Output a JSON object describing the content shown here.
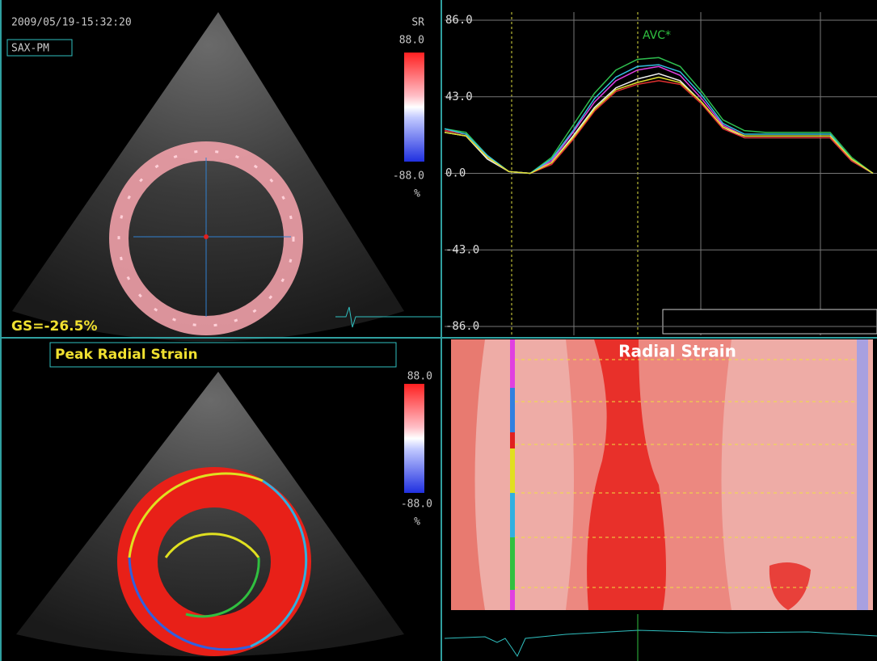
{
  "top_left": {
    "timestamp": "2009/05/19-15:32:20",
    "view": "SAX-PM",
    "mode": "SR",
    "scale_max": "88.0",
    "scale_min": "-88.0",
    "scale_unit": "%",
    "global_strain": "GS=-26.5%"
  },
  "bottom_left": {
    "title": "Peak Radial Strain",
    "scale_max": "88.0",
    "scale_min": "-88.0",
    "scale_unit": "%"
  },
  "strain_plot": {
    "ylim": [
      -86,
      86
    ],
    "xlim": [
      0,
      100
    ],
    "yticks": [
      {
        "value": 86,
        "label": "86.0"
      },
      {
        "value": 43,
        "label": "43.0"
      },
      {
        "value": 0,
        "label": "0.0"
      },
      {
        "value": -43,
        "label": "-43.0"
      },
      {
        "value": -86,
        "label": "-86.0"
      }
    ],
    "annotation": "AVC*",
    "x": [
      0,
      5,
      10,
      15,
      20,
      25,
      30,
      35,
      40,
      45,
      50,
      55,
      60,
      65,
      70,
      75,
      80,
      85,
      90,
      95,
      100
    ],
    "curves": [
      {
        "color": "#2fbf4f",
        "values": [
          25,
          23,
          10,
          1,
          0,
          9,
          27,
          45,
          58,
          64,
          65,
          60,
          46,
          30,
          24,
          23,
          23,
          23,
          23,
          9,
          0
        ]
      },
      {
        "color": "#e040e0",
        "values": [
          24,
          22,
          9,
          1,
          0,
          7,
          23,
          40,
          52,
          58,
          60,
          55,
          42,
          27,
          21,
          21,
          21,
          21,
          21,
          8,
          0
        ]
      },
      {
        "color": "#f0f0f0",
        "values": [
          23,
          21,
          8,
          1,
          0,
          6,
          21,
          37,
          48,
          53,
          56,
          52,
          40,
          26,
          20,
          20,
          20,
          20,
          20,
          7,
          0
        ]
      },
      {
        "color": "#e03030",
        "values": [
          24,
          22,
          9,
          1,
          0,
          5,
          19,
          35,
          46,
          50,
          52,
          50,
          39,
          25,
          20,
          20,
          20,
          20,
          20,
          7,
          0
        ]
      },
      {
        "color": "#30c0e0",
        "values": [
          25,
          22,
          10,
          1,
          0,
          8,
          24,
          42,
          54,
          60,
          61,
          57,
          44,
          28,
          22,
          22,
          22,
          22,
          22,
          8,
          0
        ]
      },
      {
        "color": "#e0e030",
        "values": [
          23,
          21,
          9,
          1,
          0,
          6,
          20,
          36,
          47,
          51,
          54,
          51,
          40,
          26,
          21,
          21,
          21,
          21,
          21,
          8,
          0
        ]
      }
    ]
  },
  "strain_map": {
    "title": "Radial Strain"
  }
}
